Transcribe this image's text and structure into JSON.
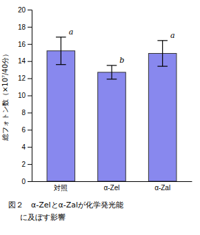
{
  "chart_data": {
    "type": "bar",
    "categories": [
      "対照",
      "α-Zel",
      "α-Zal"
    ],
    "values": [
      15.2,
      12.7,
      14.9
    ],
    "errors": [
      1.6,
      0.8,
      1.5
    ],
    "color": "#8888ee",
    "ylim": [
      0,
      20
    ],
    "yticks": [
      0,
      2,
      4,
      6,
      8,
      10,
      12,
      14,
      16,
      18,
      20
    ],
    "ylabel": "総フォトン数（×10⁷/40分）",
    "significance_labels": [
      "a",
      "b",
      "a"
    ],
    "caption_lines": [
      "図２　α-Zelとα-Zalが化学発光能",
      "に及ぼす影響"
    ]
  }
}
